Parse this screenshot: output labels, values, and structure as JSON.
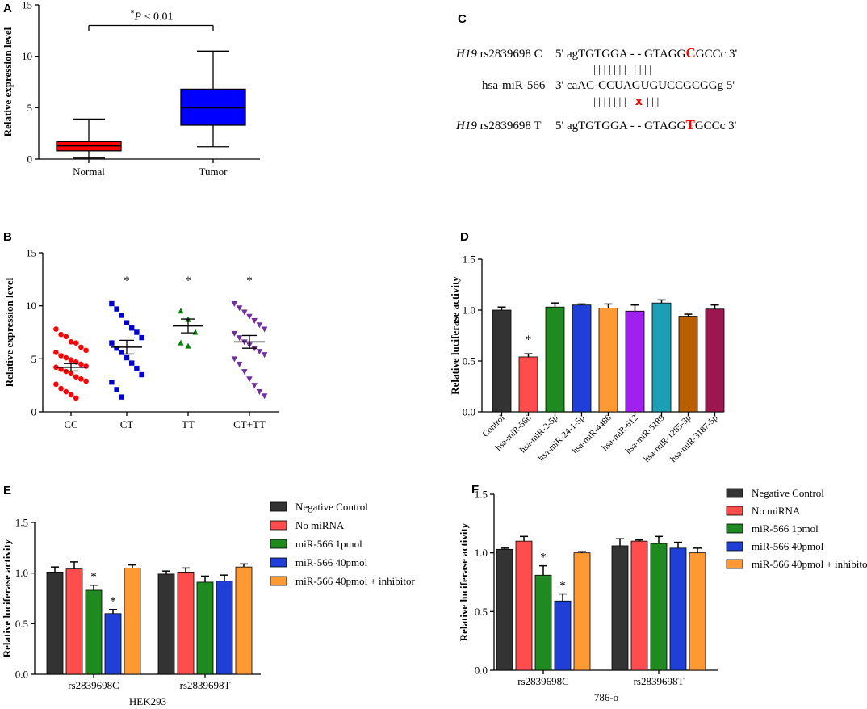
{
  "chart_data": [
    {
      "id": "A",
      "type": "box",
      "panel_label": "A",
      "ylabel": "Relative expression level",
      "ylim": [
        0,
        15
      ],
      "yticks": [
        0,
        5,
        10,
        15
      ],
      "categories": [
        "Normal",
        "Tumor"
      ],
      "boxes": [
        {
          "name": "Normal",
          "min": 0.1,
          "q1": 0.8,
          "median": 1.3,
          "q3": 1.7,
          "max": 3.9,
          "color": "#ff0000"
        },
        {
          "name": "Tumor",
          "min": 1.2,
          "q1": 3.3,
          "median": 5.0,
          "q3": 6.8,
          "max": 10.5,
          "color": "#0000ff"
        }
      ],
      "significance": {
        "star": "*",
        "italic": "P",
        "rest": " < 0.01",
        "y": 13.0
      }
    },
    {
      "id": "B",
      "type": "scatter",
      "panel_label": "B",
      "ylabel": "Relative expression level",
      "ylim": [
        0,
        15
      ],
      "yticks": [
        0,
        5,
        10,
        15
      ],
      "categories": [
        "CC",
        "CT",
        "TT",
        "CT+TT"
      ],
      "groups": [
        {
          "name": "CC",
          "marker": "circle",
          "color": "#ff0000",
          "mean": 4.2,
          "sem": 0.35,
          "star": "",
          "points": [
            7.8,
            7.3,
            7.1,
            6.6,
            6.5,
            6.1,
            5.8,
            5.6,
            5.3,
            5.1,
            4.9,
            4.7,
            4.5,
            4.3,
            4.2,
            4.0,
            3.8,
            3.6,
            3.3,
            3.1,
            2.9,
            2.6,
            2.2,
            1.9,
            1.6,
            1.3
          ]
        },
        {
          "name": "CT",
          "marker": "square",
          "color": "#0000cc",
          "mean": 6.1,
          "sem": 0.65,
          "star": "*",
          "points": [
            10.2,
            9.7,
            9.1,
            8.4,
            7.9,
            7.5,
            7.0,
            6.5,
            6.0,
            5.6,
            5.1,
            4.6,
            4.1,
            3.5,
            2.8,
            2.1,
            1.4
          ]
        },
        {
          "name": "TT",
          "marker": "triangle-up",
          "color": "#008000",
          "mean": 8.1,
          "sem": 0.65,
          "star": "*",
          "points": [
            9.5,
            8.7,
            7.5,
            6.5,
            6.2
          ]
        },
        {
          "name": "CT+TT",
          "marker": "triangle-down",
          "color": "#7030a0",
          "mean": 6.6,
          "sem": 0.6,
          "star": "*",
          "points": [
            10.2,
            9.8,
            9.4,
            9.0,
            8.6,
            8.2,
            7.8,
            7.4,
            7.0,
            6.6,
            6.3,
            6.0,
            5.7,
            5.4,
            5.0,
            4.5,
            3.8,
            3.1,
            2.5,
            1.9,
            1.5
          ]
        }
      ]
    },
    {
      "id": "C",
      "type": "alignment",
      "panel_label": "C",
      "rows": [
        {
          "kind": "seq",
          "gene": "H19",
          "label": " rs2839698 C",
          "seq_pre": "5' agTGTGGA - - GTAGG",
          "seq_hi": "C",
          "seq_post": "GCCc 3'"
        },
        {
          "kind": "pair",
          "text": "|   |   | | |               | | | | | | |"
        },
        {
          "kind": "seq",
          "gene": "",
          "label": "hsa-miR-566",
          "seq_pre": "3' caAC-CCUAGUGUCCGCGGg",
          "seq_hi": "",
          "seq_post": "  5'"
        },
        {
          "kind": "pair",
          "text": "|   |   | | |               | | |",
          "mark": "x",
          "text_after": "| | |"
        },
        {
          "kind": "seq",
          "gene": "H19",
          "label": " rs2839698 T",
          "seq_pre": "5' agTGTGGA - - GTAGG",
          "seq_hi": "T",
          "seq_post": "GCCc 3'"
        }
      ]
    },
    {
      "id": "D",
      "type": "bar",
      "panel_label": "D",
      "ylabel": "Relative luciferase activity",
      "ylim": [
        0,
        1.5
      ],
      "yticks": [
        "0.0",
        "0.5",
        "1.0",
        "1.5"
      ],
      "categories": [
        "Control",
        "hsa-miR-566",
        "hsa-miR-2-5p",
        "hsa-miR-24-1-5p",
        "hsa-miR-4486",
        "hsa-miR-612",
        "hsa-miR-5189",
        "hsa-miR-1285-3p",
        "hsa-miR-3187-5p"
      ],
      "values": [
        1.0,
        0.54,
        1.03,
        1.05,
        1.02,
        0.99,
        1.07,
        0.94,
        1.01
      ],
      "errors": [
        0.03,
        0.03,
        0.04,
        0.01,
        0.04,
        0.06,
        0.03,
        0.02,
        0.04
      ],
      "colors": [
        "#333333",
        "#ff4d4d",
        "#1f8a1f",
        "#1f3fd6",
        "#ff9933",
        "#a020f0",
        "#1a9fb5",
        "#b85f00",
        "#9c1750"
      ],
      "stars": [
        "",
        "*",
        "",
        "",
        "",
        "",
        "",
        "",
        ""
      ]
    },
    {
      "id": "E",
      "type": "bar",
      "panel_label": "E",
      "ylabel": "Relative luciferase activity",
      "xlabel": "HEK293",
      "ylim": [
        0,
        1.5
      ],
      "yticks": [
        "0.0",
        "0.5",
        "1.0",
        "1.5"
      ],
      "categories": [
        "rs2839698C",
        "rs2839698T"
      ],
      "series": [
        {
          "name": "Negative Control",
          "color": "#333333",
          "values": [
            1.01,
            0.99
          ],
          "errors": [
            0.05,
            0.03
          ],
          "stars": [
            "",
            ""
          ]
        },
        {
          "name": "No miRNA",
          "color": "#ff4d4d",
          "values": [
            1.04,
            1.01
          ],
          "errors": [
            0.07,
            0.04
          ],
          "stars": [
            "",
            ""
          ]
        },
        {
          "name": "miR-566 1pmol",
          "color": "#1f8a1f",
          "values": [
            0.83,
            0.91
          ],
          "errors": [
            0.05,
            0.06
          ],
          "stars": [
            "*",
            ""
          ]
        },
        {
          "name": "miR-566 40pmol",
          "color": "#1f3fd6",
          "values": [
            0.6,
            0.92
          ],
          "errors": [
            0.04,
            0.06
          ],
          "stars": [
            "*",
            ""
          ]
        },
        {
          "name": "miR-566 40pmol + inhibitor",
          "color": "#ff9933",
          "values": [
            1.05,
            1.06
          ],
          "errors": [
            0.03,
            0.03
          ],
          "stars": [
            "",
            ""
          ]
        }
      ]
    },
    {
      "id": "F",
      "type": "bar",
      "panel_label": "F",
      "ylabel": "Relative luciferase activity",
      "xlabel": "786-o",
      "ylim": [
        0,
        1.5
      ],
      "yticks": [
        "0.0",
        "0.5",
        "1.0",
        "1.5"
      ],
      "categories": [
        "rs2839698C",
        "rs2839698T"
      ],
      "series": [
        {
          "name": "Negative Control",
          "color": "#333333",
          "values": [
            1.03,
            1.06
          ],
          "errors": [
            0.01,
            0.06
          ],
          "stars": [
            "",
            ""
          ]
        },
        {
          "name": "No miRNA",
          "color": "#ff4d4d",
          "values": [
            1.1,
            1.1
          ],
          "errors": [
            0.04,
            0.01
          ],
          "stars": [
            "",
            ""
          ]
        },
        {
          "name": "miR-566 1pmol",
          "color": "#1f8a1f",
          "values": [
            0.81,
            1.08
          ],
          "errors": [
            0.08,
            0.06
          ],
          "stars": [
            "*",
            ""
          ]
        },
        {
          "name": "miR-566 40pmol",
          "color": "#1f3fd6",
          "values": [
            0.59,
            1.04
          ],
          "errors": [
            0.06,
            0.05
          ],
          "stars": [
            "*",
            ""
          ]
        },
        {
          "name": "miR-566 40pmol + inhibitor",
          "color": "#ff9933",
          "values": [
            1.0,
            1.0
          ],
          "errors": [
            0.01,
            0.04
          ],
          "stars": [
            "",
            ""
          ]
        }
      ]
    }
  ]
}
